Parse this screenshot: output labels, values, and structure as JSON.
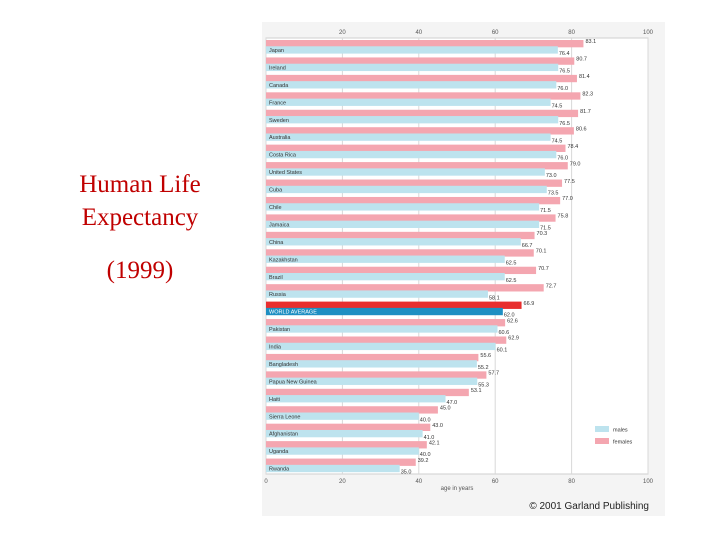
{
  "title_block": {
    "line1": "Human Life",
    "line2": "Expectancy",
    "year": "(1999)"
  },
  "chart_data": {
    "type": "bar",
    "orientation": "horizontal",
    "categories": [
      "Japan",
      "Ireland",
      "Canada",
      "France",
      "Sweden",
      "Australia",
      "Costa Rica",
      "United States",
      "Cuba",
      "Chile",
      "Jamaica",
      "China",
      "Kazakhstan",
      "Brazil",
      "Russia",
      "WORLD AVERAGE",
      "Pakistan",
      "India",
      "Bangladesh",
      "Papua New Guinea",
      "Haiti",
      "Sierra Leone",
      "Afghanistan",
      "Uganda",
      "Rwanda"
    ],
    "series": [
      {
        "name": "females",
        "color": "#f4a6b0",
        "values": [
          83.1,
          80.7,
          81.4,
          82.3,
          81.7,
          80.6,
          78.4,
          79.0,
          77.5,
          77.0,
          75.8,
          70.3,
          70.1,
          70.7,
          72.7,
          66.9,
          62.6,
          62.9,
          55.6,
          57.7,
          53.1,
          45.0,
          43.0,
          42.1,
          39.2
        ],
        "labels": [
          "83.1",
          "80.7",
          "81.4",
          "82.3",
          "81.7",
          "80.6",
          "78.4",
          "79.0",
          "77.5",
          "77.0",
          "75.8",
          "70.3",
          "70.1",
          "70.7",
          "72.7",
          "66.9",
          "62.6",
          "62.9",
          "55.6",
          "57.7",
          "53.1",
          "45.0",
          "43.0",
          "42.1",
          "39.2"
        ]
      },
      {
        "name": "males",
        "color": "#bde3ee",
        "values": [
          76.4,
          76.5,
          76.0,
          74.5,
          76.5,
          74.5,
          76.0,
          73.0,
          73.5,
          71.5,
          71.5,
          66.7,
          62.5,
          62.5,
          58.1,
          62.0,
          60.6,
          60.1,
          55.2,
          55.3,
          47.0,
          40.0,
          41.0,
          40.0,
          35.0
        ],
        "labels": [
          "76.4",
          "76.5",
          "76.0",
          "74.5",
          "76.5",
          "74.5",
          "76.0",
          "73.0",
          "73.5",
          "71.5",
          "71.5",
          "66.7",
          "62.5",
          "62.5",
          "58.1",
          "62.0",
          "60.6",
          "60.1",
          "55.2",
          "55.3",
          "47.0",
          "40.0",
          "41.0",
          "40.0",
          "35.0"
        ]
      }
    ],
    "highlight": {
      "category": "WORLD AVERAGE",
      "female_color": "#e82e2e",
      "male_color": "#1e8fc2"
    },
    "xlim": [
      0,
      100
    ],
    "bottom_ticks": [
      "0",
      "20",
      "40",
      "60",
      "80",
      "100"
    ],
    "top_ticks": [
      "20",
      "40",
      "60",
      "80",
      "100"
    ],
    "xlabel": "age in years",
    "legend": {
      "position": "right",
      "items": [
        "males",
        "females"
      ]
    }
  },
  "credit": "© 2001 Garland Publishing"
}
